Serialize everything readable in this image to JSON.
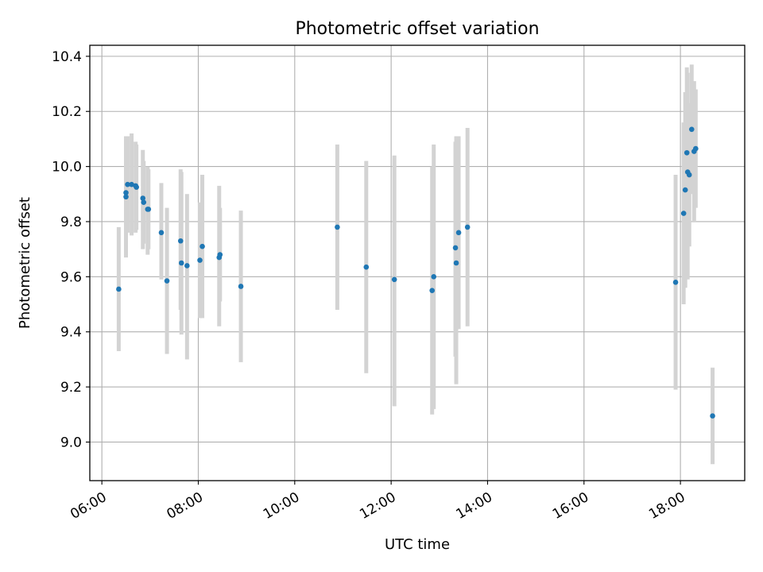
{
  "chart_data": {
    "type": "scatter",
    "title": "Photometric offset variation",
    "xlabel": "UTC time",
    "ylabel": "Photometric offset",
    "x_axis_type": "time",
    "xlim": [
      "05:45",
      "19:20"
    ],
    "ylim": [
      8.86,
      10.44
    ],
    "xticks": [
      "06:00",
      "08:00",
      "10:00",
      "12:00",
      "14:00",
      "16:00",
      "18:00"
    ],
    "yticks": [
      "9.0",
      "9.2",
      "9.4",
      "9.6",
      "9.8",
      "10.0",
      "10.2",
      "10.4"
    ],
    "grid": true,
    "legend": "none",
    "marker_color": "#1f77b4",
    "errorbar_color": "#d3d3d3",
    "points": [
      {
        "t": "06:21",
        "y": 9.555,
        "lo": 9.33,
        "hi": 9.78
      },
      {
        "t": "06:30",
        "y": 9.905,
        "lo": 9.7,
        "hi": 10.11
      },
      {
        "t": "06:30",
        "y": 9.89,
        "lo": 9.67,
        "hi": 10.11
      },
      {
        "t": "06:32",
        "y": 9.935,
        "lo": 9.76,
        "hi": 10.11
      },
      {
        "t": "06:37",
        "y": 9.935,
        "lo": 9.75,
        "hi": 10.12
      },
      {
        "t": "06:42",
        "y": 9.93,
        "lo": 9.76,
        "hi": 10.09
      },
      {
        "t": "06:43",
        "y": 9.925,
        "lo": 9.77,
        "hi": 10.08
      },
      {
        "t": "06:51",
        "y": 9.885,
        "lo": 9.7,
        "hi": 10.06
      },
      {
        "t": "06:52",
        "y": 9.87,
        "lo": 9.72,
        "hi": 10.02
      },
      {
        "t": "06:57",
        "y": 9.845,
        "lo": 9.68,
        "hi": 10.0
      },
      {
        "t": "06:58",
        "y": 9.845,
        "lo": 9.7,
        "hi": 9.99
      },
      {
        "t": "07:14",
        "y": 9.76,
        "lo": 9.59,
        "hi": 9.94
      },
      {
        "t": "07:21",
        "y": 9.585,
        "lo": 9.32,
        "hi": 9.85
      },
      {
        "t": "07:38",
        "y": 9.73,
        "lo": 9.48,
        "hi": 9.99
      },
      {
        "t": "07:39",
        "y": 9.65,
        "lo": 9.39,
        "hi": 9.98
      },
      {
        "t": "07:46",
        "y": 9.64,
        "lo": 9.3,
        "hi": 9.9
      },
      {
        "t": "08:02",
        "y": 9.66,
        "lo": 9.45,
        "hi": 9.87
      },
      {
        "t": "08:05",
        "y": 9.71,
        "lo": 9.45,
        "hi": 9.97
      },
      {
        "t": "08:26",
        "y": 9.67,
        "lo": 9.42,
        "hi": 9.93
      },
      {
        "t": "08:27",
        "y": 9.68,
        "lo": 9.51,
        "hi": 9.85
      },
      {
        "t": "08:53",
        "y": 9.565,
        "lo": 9.29,
        "hi": 9.84
      },
      {
        "t": "10:53",
        "y": 9.78,
        "lo": 9.48,
        "hi": 10.08
      },
      {
        "t": "11:29",
        "y": 9.635,
        "lo": 9.25,
        "hi": 10.02
      },
      {
        "t": "12:04",
        "y": 9.59,
        "lo": 9.13,
        "hi": 10.04
      },
      {
        "t": "12:51",
        "y": 9.55,
        "lo": 9.1,
        "hi": 10.0
      },
      {
        "t": "12:53",
        "y": 9.6,
        "lo": 9.12,
        "hi": 10.08
      },
      {
        "t": "13:20",
        "y": 9.705,
        "lo": 9.31,
        "hi": 10.09
      },
      {
        "t": "13:21",
        "y": 9.65,
        "lo": 9.21,
        "hi": 10.11
      },
      {
        "t": "13:24",
        "y": 9.76,
        "lo": 9.41,
        "hi": 10.11
      },
      {
        "t": "13:35",
        "y": 9.78,
        "lo": 9.42,
        "hi": 10.14
      },
      {
        "t": "17:54",
        "y": 9.58,
        "lo": 9.19,
        "hi": 9.97
      },
      {
        "t": "18:04",
        "y": 9.83,
        "lo": 9.5,
        "hi": 10.16
      },
      {
        "t": "18:06",
        "y": 9.915,
        "lo": 9.56,
        "hi": 10.27
      },
      {
        "t": "18:08",
        "y": 10.05,
        "lo": 9.7,
        "hi": 10.36
      },
      {
        "t": "18:09",
        "y": 9.98,
        "lo": 9.59,
        "hi": 10.34
      },
      {
        "t": "18:11",
        "y": 9.97,
        "lo": 9.71,
        "hi": 10.23
      },
      {
        "t": "18:14",
        "y": 10.135,
        "lo": 9.9,
        "hi": 10.37
      },
      {
        "t": "18:17",
        "y": 10.055,
        "lo": 9.8,
        "hi": 10.31
      },
      {
        "t": "18:19",
        "y": 10.065,
        "lo": 9.85,
        "hi": 10.28
      },
      {
        "t": "18:40",
        "y": 9.095,
        "lo": 8.92,
        "hi": 9.27
      }
    ]
  }
}
